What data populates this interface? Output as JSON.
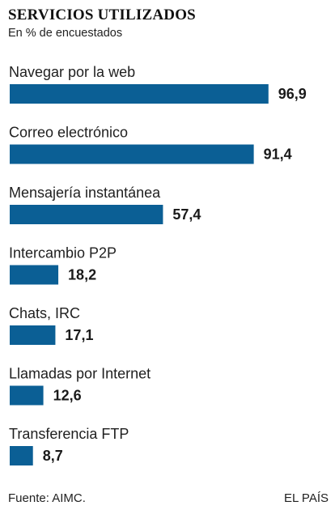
{
  "chart_data": {
    "type": "bar",
    "orientation": "horizontal",
    "title": "SERVICIOS UTILIZADOS",
    "subtitle": "En % de encuestados",
    "categories": [
      "Navegar por la web",
      "Correo electrónico",
      "Mensajería instantánea",
      "Intercambio P2P",
      "Chats, IRC",
      "Llamadas por Internet",
      "Transferencia FTP"
    ],
    "values": [
      96.9,
      91.4,
      57.4,
      18.2,
      17.1,
      12.6,
      8.7
    ],
    "value_labels": [
      "96,9",
      "91,4",
      "57,4",
      "18,2",
      "17,1",
      "12,6",
      "8,7"
    ],
    "xlim": [
      0,
      100
    ],
    "bar_color": "#0b5f95",
    "grid": false,
    "legend": "none"
  },
  "footer": {
    "source": "Fuente: AIMC.",
    "brand": "EL PAÍS"
  }
}
